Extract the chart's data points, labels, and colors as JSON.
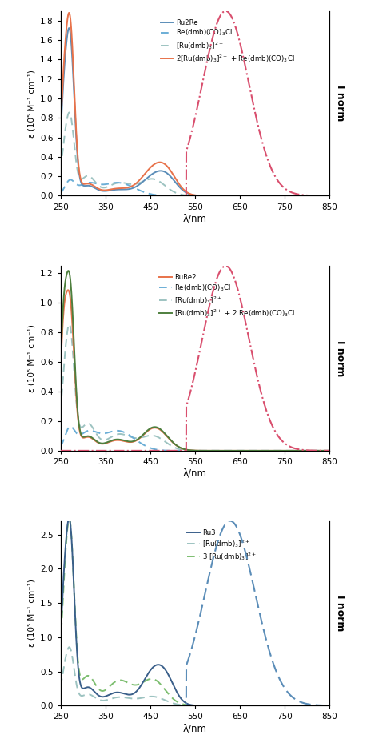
{
  "panel1": {
    "ylabel": "ε (10⁵ M⁻¹ cm⁻¹)",
    "xlabel": "λ/nm",
    "ylim": [
      0.0,
      1.9
    ],
    "yticks": [
      0.0,
      0.2,
      0.4,
      0.6,
      0.8,
      1.0,
      1.2,
      1.4,
      1.6,
      1.8
    ],
    "xlim": [
      250,
      850
    ],
    "xticks": [
      250,
      350,
      450,
      550,
      650,
      750,
      850
    ],
    "right_ylabel": "I norm",
    "legend_labels": [
      "Ru2Re",
      "Re(dmb)(CO)$_3$Cl",
      "[Ru(dmb)$_3$]$^{2+}$",
      "2[Ru(dmb)$_3$]$^{2+}$ + Re(dmb)(CO)$_3$Cl"
    ]
  },
  "panel2": {
    "ylabel": "ε (10⁵ M⁻¹ cm⁻¹)",
    "xlabel": "λ/nm",
    "ylim": [
      0.0,
      1.25
    ],
    "yticks": [
      0.0,
      0.2,
      0.4,
      0.6,
      0.8,
      1.0,
      1.2
    ],
    "xlim": [
      250,
      850
    ],
    "xticks": [
      250,
      350,
      450,
      550,
      650,
      750,
      850
    ],
    "right_ylabel": "I norm",
    "legend_labels": [
      "RuRe2",
      "Re(dmb)(CO)$_3$Cl",
      "[Ru(dmb)$_3$]$^{2+}$",
      "[Ru(dmb)$_3$]$^{2+}$ + 2 Re(dmb)(CO)$_3$Cl"
    ]
  },
  "panel3": {
    "ylabel": "ε (10⁵ M⁻¹ cm⁻¹)",
    "xlabel": "λ/nm",
    "ylim": [
      0.0,
      2.7
    ],
    "yticks": [
      0.0,
      0.5,
      1.0,
      1.5,
      2.0,
      2.5
    ],
    "xlim": [
      250,
      850
    ],
    "xticks": [
      250,
      350,
      450,
      550,
      650,
      750,
      850
    ],
    "right_ylabel": "I norm",
    "legend_labels": [
      "Ru3",
      "[Ru(dmb)$_3$]$^{2+}$",
      "3 [Ru(dmb)$_3$]$^{2+}$"
    ]
  },
  "colors": {
    "p1_ru2re": "#5B8DB8",
    "p1_re_abs": "#6BAED6",
    "p1_ru_dmb": "#9DC3C1",
    "p1_combo": "#E8724A",
    "p1_emission": "#D94F6E",
    "p2_rure2": "#E8724A",
    "p2_re_abs": "#6BAED6",
    "p2_ru_dmb": "#9DC3C1",
    "p2_combo": "#4E7F3E",
    "p2_emission": "#D94F6E",
    "p3_ru3": "#3A5F8A",
    "p3_ru_dmb": "#9DC3C1",
    "p3_ru_dmb3": "#7DBE70",
    "p3_emission": "#5B8DB8"
  }
}
